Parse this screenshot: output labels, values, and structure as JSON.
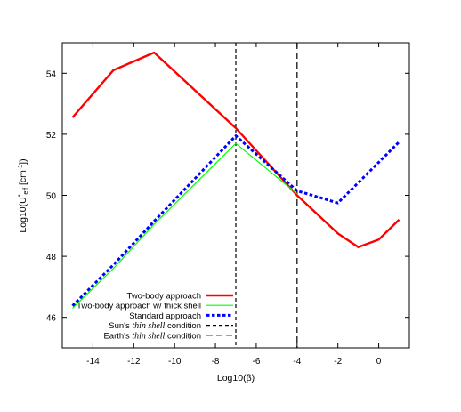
{
  "chart_data": {
    "type": "line",
    "xlabel": "Log10(β)",
    "ylabel": {
      "prefix": "Log10(U",
      "sup": "*",
      "sub": "eff",
      "suffix": " [cm",
      "unit_sup": "-1",
      "end": "])"
    },
    "xlim": [
      -15.5,
      1.5
    ],
    "ylim": [
      45,
      55
    ],
    "x_ticks": [
      -14,
      -12,
      -10,
      -8,
      -6,
      -4,
      -2,
      0
    ],
    "y_ticks": [
      46,
      48,
      50,
      52,
      54
    ],
    "grid": false,
    "legend_position": "bottom-left",
    "series": [
      {
        "name": "Two-body approach",
        "color": "#ff0000",
        "style": "solid-thick",
        "x": [
          -15,
          -13,
          -11,
          -7,
          -4,
          -2,
          -1,
          0,
          1
        ],
        "y": [
          52.55,
          54.1,
          54.68,
          52.2,
          50.0,
          48.75,
          48.3,
          48.55,
          49.2
        ]
      },
      {
        "name": "Two-body approach w/ thick shell",
        "color": "#00ff00",
        "style": "solid-thin",
        "x": [
          -15,
          -13,
          -11,
          -7,
          -4
        ],
        "y": [
          46.3,
          47.6,
          49.05,
          51.7,
          50.05
        ]
      },
      {
        "name": "Standard approach",
        "color": "#0000ff",
        "style": "dotted-thick",
        "x": [
          -15,
          -13,
          -11,
          -7,
          -4,
          -2,
          1
        ],
        "y": [
          46.38,
          47.72,
          49.15,
          51.95,
          50.15,
          49.75,
          51.75
        ]
      }
    ],
    "vlines": [
      {
        "name_prefix": "Sun's ",
        "name_italic": "thin shell",
        "name_suffix": " condition",
        "x": -7,
        "color": "#000000",
        "style": "short-dash"
      },
      {
        "name_prefix": "Earth's ",
        "name_italic": "thin shell",
        "name_suffix": " condition",
        "x": -4,
        "color": "#000000",
        "style": "long-dash"
      }
    ]
  }
}
